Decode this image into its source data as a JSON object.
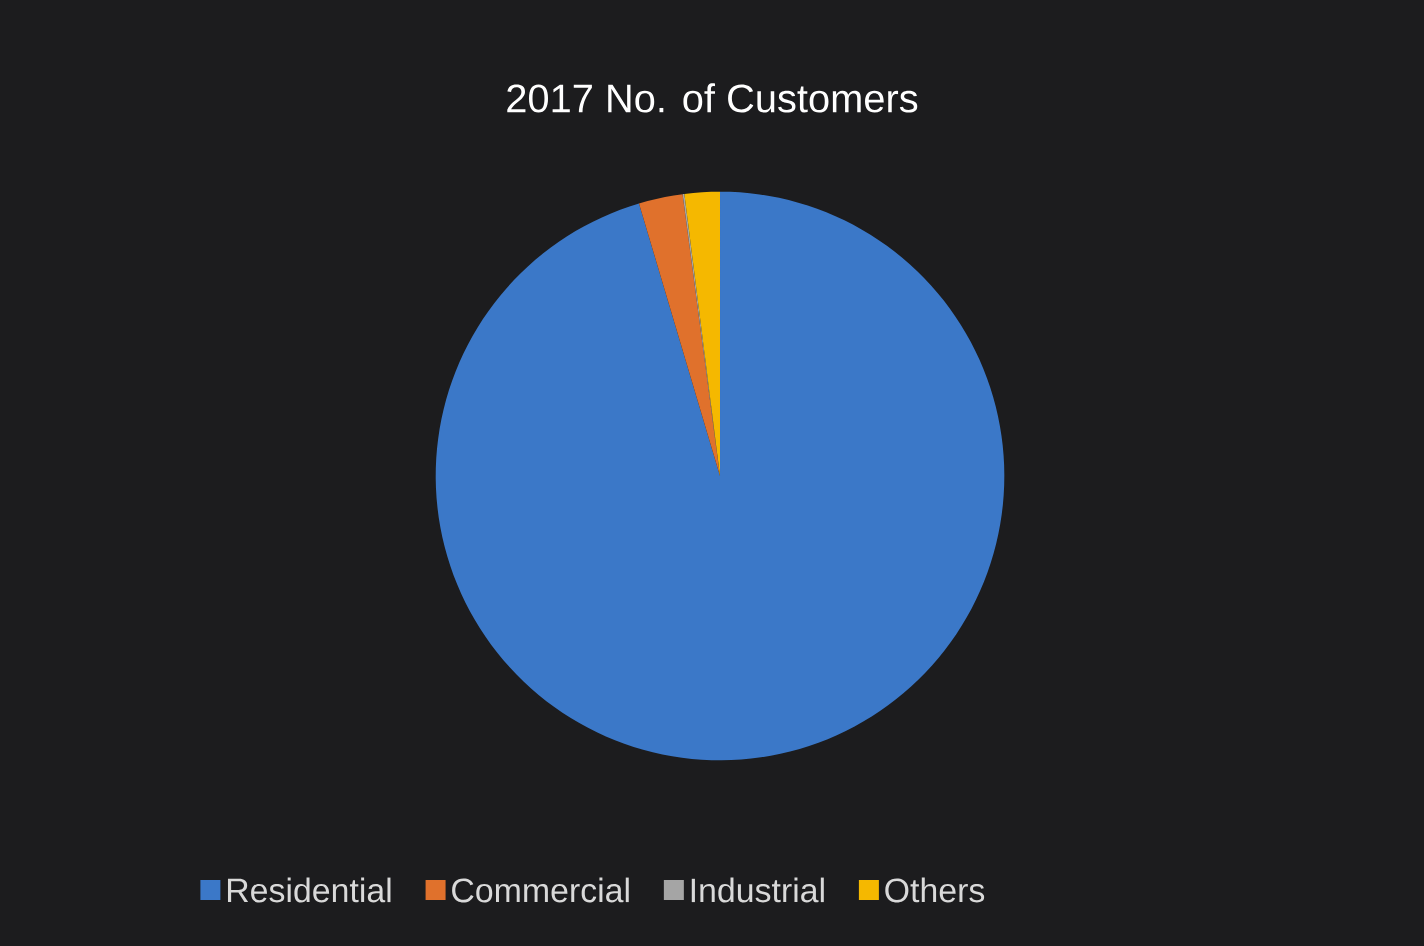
{
  "chart_data": {
    "type": "pie",
    "title": "2017 No. of Customers",
    "categories": [
      "Residential",
      "Commercial",
      "Industrial",
      "Others"
    ],
    "values": [
      95.4,
      2.5,
      0.1,
      2.0
    ],
    "colors": [
      "#3b78c8",
      "#e0712c",
      "#a5a5a5",
      "#f5b800"
    ],
    "legend": "bottom"
  }
}
